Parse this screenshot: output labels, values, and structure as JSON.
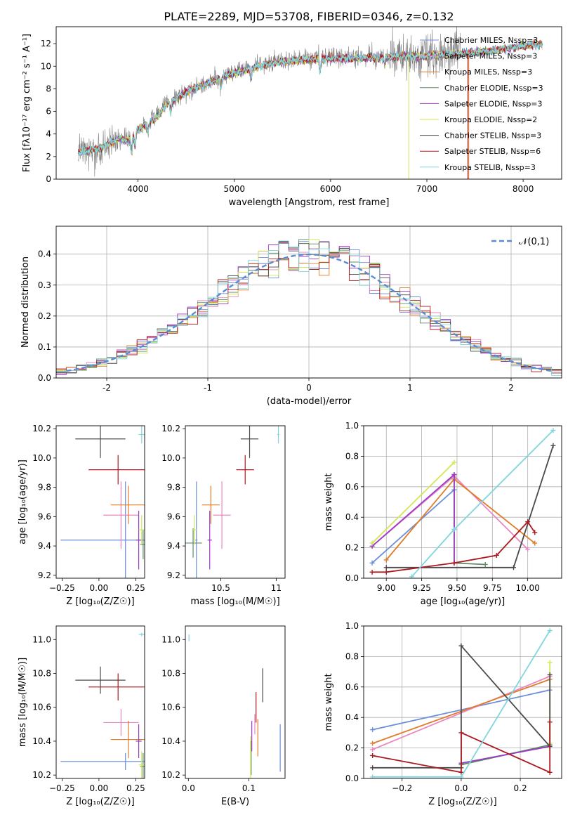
{
  "chart_data": [
    {
      "id": "spectrum",
      "type": "line",
      "title": "PLATE=2289, MJD=53708, FIBERID=0346, z=0.132",
      "xlabel": "wavelength [Angstrom, rest frame]",
      "ylabel": "Flux [fλ10⁻¹⁷ erg cm⁻² s⁻¹ A⁻¹]",
      "xlim": [
        3150,
        8400
      ],
      "ylim": [
        0,
        13.5
      ],
      "xticks": [
        4000,
        5000,
        6000,
        7000,
        8000
      ],
      "yticks": [
        0,
        2,
        4,
        6,
        8,
        10,
        12
      ],
      "legend_position": "top-right",
      "series": [
        {
          "name": "Chabrier MILES, N_SSP=3",
          "color": "#6c8ed9"
        },
        {
          "name": "Salpeter MILES, N_SSP=3",
          "color": "#e987c2"
        },
        {
          "name": "Kroupa MILES, N_SSP=3",
          "color": "#e07b28"
        },
        {
          "name": "Chabrier ELODIE, N_SSP=3",
          "color": "#5e8c68"
        },
        {
          "name": "Salpeter ELODIE, N_SSP=3",
          "color": "#9b3bc3"
        },
        {
          "name": "Kroupa ELODIE, N_SSP=2",
          "color": "#d2e657"
        },
        {
          "name": "Chabrier STELIB, N_SSP=3",
          "color": "#4a4a4a"
        },
        {
          "name": "Salpeter STELIB, N_SSP=6",
          "color": "#ac1a20"
        },
        {
          "name": "Kroupa STELIB, N_SSP=3",
          "color": "#7fd6de"
        }
      ],
      "continuum": {
        "x": [
          3400,
          3600,
          3700,
          3800,
          3900,
          4000,
          4100,
          4200,
          4300,
          4400,
          4500,
          4700,
          5000,
          5300,
          5500,
          5800,
          6000,
          6300,
          6600,
          7000,
          7300,
          7600,
          7800,
          8000,
          8100
        ],
        "y": [
          2.5,
          2.8,
          3.2,
          3.7,
          3.5,
          4.5,
          5.0,
          5.6,
          6.8,
          7.2,
          7.8,
          8.5,
          9.5,
          10.2,
          10.5,
          10.7,
          10.8,
          10.8,
          10.9,
          11.0,
          11.2,
          11.4,
          11.6,
          11.9,
          12.0
        ]
      },
      "data_range": [
        3380,
        7350
      ],
      "model_range": [
        3380,
        8200
      ]
    },
    {
      "id": "residual-hist",
      "type": "histogram",
      "xlabel": "(data-model)/error",
      "ylabel": "Normed distribution",
      "xlim": [
        -2.5,
        2.5
      ],
      "ylim": [
        0,
        0.49
      ],
      "xticks": [
        -2,
        -1,
        0,
        1,
        2
      ],
      "yticks": [
        0.0,
        0.1,
        0.2,
        0.3,
        0.4
      ],
      "grid": true,
      "legend_position": "top-right",
      "reference_curve": {
        "name": "𝒩(0,1)",
        "color": "#5b8bd5",
        "style": "dashed"
      },
      "bin_width": 0.1
    },
    {
      "id": "age-vs-Z",
      "type": "errorbar",
      "xlabel": "Z [log₁₀(Z/Z☉)]",
      "ylabel": "age  [log₁₀(age/yr)]",
      "xlim": [
        -0.29,
        0.31
      ],
      "ylim": [
        9.18,
        10.22
      ],
      "xticks": [
        -0.25,
        0.0,
        0.25
      ],
      "xticklabels": [
        "−0.25",
        "0.00",
        "0.25"
      ],
      "yticks": [
        9.2,
        9.4,
        9.6,
        9.8,
        10.0,
        10.2
      ],
      "points": [
        {
          "color": "#6c8ed9",
          "x": 0.18,
          "xerr": 0.44,
          "y": 9.44,
          "yerr": 0.4
        },
        {
          "color": "#e987c2",
          "x": 0.15,
          "xerr": 0.12,
          "y": 9.61,
          "yerr": 0.23
        },
        {
          "color": "#e07b28",
          "x": 0.2,
          "xerr": 0.12,
          "y": 9.68,
          "yerr": 0.13
        },
        {
          "color": "#5e8c68",
          "x": 0.3,
          "xerr": 0.02,
          "y": 9.41,
          "yerr": 0.1
        },
        {
          "color": "#9b3bc3",
          "x": 0.27,
          "xerr": 0.02,
          "y": 9.44,
          "yerr": 0.2
        },
        {
          "color": "#d2e657",
          "x": 0.29,
          "xerr": 0.02,
          "y": 9.51,
          "yerr": 0.1
        },
        {
          "color": "#4a4a4a",
          "x": 0.01,
          "xerr": 0.17,
          "y": 10.13,
          "yerr": 0.13
        },
        {
          "color": "#ac1a20",
          "x": 0.13,
          "xerr": 0.2,
          "y": 9.92,
          "yerr": 0.1
        },
        {
          "color": "#7fd6de",
          "x": 0.29,
          "xerr": 0.02,
          "y": 10.16,
          "yerr": 0.06
        }
      ]
    },
    {
      "id": "age-vs-mass",
      "type": "errorbar",
      "xlabel": "mass [log₁₀(M/M☉)]",
      "xlim": [
        10.18,
        11.08
      ],
      "ylim": [
        9.18,
        10.22
      ],
      "xticks": [
        10.5,
        11.0
      ],
      "yticks": [
        9.2,
        9.4,
        9.6,
        9.8,
        10.0,
        10.2
      ],
      "points": [
        {
          "color": "#6c8ed9",
          "x": 10.28,
          "xerr": 0.01,
          "y": 9.44,
          "yerr": 0.4
        },
        {
          "color": "#e987c2",
          "x": 10.51,
          "xerr": 0.08,
          "y": 9.61,
          "yerr": 0.23
        },
        {
          "color": "#e07b28",
          "x": 10.41,
          "xerr": 0.08,
          "y": 9.68,
          "yerr": 0.13
        },
        {
          "color": "#5e8c68",
          "x": 10.25,
          "xerr": 0.08,
          "y": 9.42,
          "yerr": 0.1
        },
        {
          "color": "#9b3bc3",
          "x": 10.4,
          "xerr": 0.02,
          "y": 9.44,
          "yerr": 0.2
        },
        {
          "color": "#d2e657",
          "x": 10.26,
          "xerr": 0.02,
          "y": 9.51,
          "yerr": 0.1
        },
        {
          "color": "#4a4a4a",
          "x": 10.76,
          "xerr": 0.08,
          "y": 10.13,
          "yerr": 0.13
        },
        {
          "color": "#ac1a20",
          "x": 10.72,
          "xerr": 0.08,
          "y": 9.92,
          "yerr": 0.1
        },
        {
          "color": "#7fd6de",
          "x": 11.02,
          "xerr": 0.01,
          "y": 10.16,
          "yerr": 0.06
        }
      ]
    },
    {
      "id": "massweight-vs-age",
      "type": "line",
      "xlabel": "age  [log₁₀(age/yr)]",
      "ylabel": "mass weight",
      "xlim": [
        8.84,
        10.24
      ],
      "ylim": [
        0.0,
        1.0
      ],
      "xticks": [
        9.0,
        9.25,
        9.5,
        9.75,
        10.0
      ],
      "xticklabels": [
        "9.00",
        "9.25",
        "9.50",
        "9.75",
        "10.00"
      ],
      "yticks": [
        0.0,
        0.2,
        0.4,
        0.6,
        0.8,
        1.0
      ],
      "grid": true,
      "series": [
        {
          "color": "#6c8ed9",
          "x": [
            8.9,
            9.48,
            9.48
          ],
          "y": [
            0.1,
            0.58,
            0.32
          ]
        },
        {
          "color": "#e987c2",
          "x": [
            8.9,
            9.48,
            10.0
          ],
          "y": [
            0.21,
            0.67,
            0.19
          ]
        },
        {
          "color": "#e07b28",
          "x": [
            9.0,
            9.48,
            10.05
          ],
          "y": [
            0.12,
            0.65,
            0.23
          ]
        },
        {
          "color": "#5e8c68",
          "x": [
            9.48,
            9.48,
            9.7
          ],
          "y": [
            0.68,
            0.1,
            0.09
          ]
        },
        {
          "color": "#9b3bc3",
          "x": [
            8.9,
            9.48,
            9.48
          ],
          "y": [
            0.21,
            0.68,
            0.1
          ]
        },
        {
          "color": "#d2e657",
          "x": [
            8.9,
            9.48
          ],
          "y": [
            0.23,
            0.76
          ]
        },
        {
          "color": "#4a4a4a",
          "x": [
            9.0,
            9.9,
            10.18
          ],
          "y": [
            0.07,
            0.07,
            0.87
          ]
        },
        {
          "color": "#ac1a20",
          "x": [
            8.9,
            9.0,
            9.48,
            9.78,
            10.0,
            10.05
          ],
          "y": [
            0.04,
            0.04,
            0.1,
            0.15,
            0.37,
            0.3
          ]
        },
        {
          "color": "#7fd6de",
          "x": [
            9.18,
            9.48,
            10.18
          ],
          "y": [
            0.01,
            0.32,
            0.97
          ]
        }
      ]
    },
    {
      "id": "mass-vs-Z",
      "type": "errorbar",
      "xlabel": "Z [log₁₀(Z/Z☉)]",
      "ylabel": "mass [log₁₀(M/M☉)]",
      "xlim": [
        -0.29,
        0.31
      ],
      "ylim": [
        10.18,
        11.08
      ],
      "xticks": [
        -0.25,
        0.0,
        0.25
      ],
      "xticklabels": [
        "−0.25",
        "0.00",
        "0.25"
      ],
      "yticks": [
        10.2,
        10.4,
        10.6,
        10.8,
        11.0
      ],
      "points": [
        {
          "color": "#6c8ed9",
          "x": 0.18,
          "xerr": 0.44,
          "y": 10.28,
          "yerr": 0.05
        },
        {
          "color": "#e987c2",
          "x": 0.15,
          "xerr": 0.12,
          "y": 10.51,
          "yerr": 0.08
        },
        {
          "color": "#e07b28",
          "x": 0.2,
          "xerr": 0.12,
          "y": 10.41,
          "yerr": 0.11
        },
        {
          "color": "#5e8c68",
          "x": 0.3,
          "xerr": 0.02,
          "y": 10.25,
          "yerr": 0.08
        },
        {
          "color": "#9b3bc3",
          "x": 0.27,
          "xerr": 0.02,
          "y": 10.4,
          "yerr": 0.1
        },
        {
          "color": "#d2e657",
          "x": 0.29,
          "xerr": 0.02,
          "y": 10.26,
          "yerr": 0.08
        },
        {
          "color": "#4a4a4a",
          "x": 0.01,
          "xerr": 0.17,
          "y": 10.76,
          "yerr": 0.08
        },
        {
          "color": "#ac1a20",
          "x": 0.13,
          "xerr": 0.2,
          "y": 10.72,
          "yerr": 0.08
        },
        {
          "color": "#7fd6de",
          "x": 0.29,
          "xerr": 0.02,
          "y": 11.03,
          "yerr": 0.01
        }
      ]
    },
    {
      "id": "mass-vs-ebv",
      "type": "errorbar",
      "xlabel": "E(B-V)",
      "xlim": [
        -0.005,
        0.16
      ],
      "ylim": [
        10.18,
        11.08
      ],
      "xticks": [
        0.0,
        0.1
      ],
      "xticklabels": [
        "0.0",
        "0.1"
      ],
      "yticks": [
        10.2,
        10.4,
        10.6,
        10.8,
        11.0
      ],
      "points": [
        {
          "color": "#6c8ed9",
          "x": 0.152,
          "xerr": 0.0,
          "y": 10.36,
          "yerr": 0.14
        },
        {
          "color": "#e987c2",
          "x": 0.11,
          "xerr": 0.0,
          "y": 10.5,
          "yerr": 0.06
        },
        {
          "color": "#e07b28",
          "x": 0.115,
          "xerr": 0.0,
          "y": 10.42,
          "yerr": 0.11
        },
        {
          "color": "#5e8c68",
          "x": 0.104,
          "xerr": 0.0,
          "y": 10.3,
          "yerr": 0.1
        },
        {
          "color": "#9b3bc3",
          "x": 0.105,
          "xerr": 0.0,
          "y": 10.43,
          "yerr": 0.09
        },
        {
          "color": "#d2e657",
          "x": 0.103,
          "xerr": 0.0,
          "y": 10.28,
          "yerr": 0.15
        },
        {
          "color": "#4a4a4a",
          "x": 0.123,
          "xerr": 0.0,
          "y": 10.73,
          "yerr": 0.1
        },
        {
          "color": "#ac1a20",
          "x": 0.112,
          "xerr": 0.0,
          "y": 10.6,
          "yerr": 0.09
        },
        {
          "color": "#7fd6de",
          "x": 0.001,
          "xerr": 0.0,
          "y": 11.01,
          "yerr": 0.02
        }
      ]
    },
    {
      "id": "massweight-vs-Z",
      "type": "line",
      "xlabel": "Z [log₁₀(Z/Z☉)]",
      "ylabel": "mass weight",
      "xlim": [
        -0.33,
        0.34
      ],
      "ylim": [
        0.0,
        1.0
      ],
      "xticks": [
        -0.2,
        0.0,
        0.2
      ],
      "xticklabels": [
        "−0.2",
        "0.0",
        "0.2"
      ],
      "yticks": [
        0.0,
        0.2,
        0.4,
        0.6,
        0.8,
        1.0
      ],
      "grid": true,
      "series": [
        {
          "color": "#6c8ed9",
          "x": [
            -0.3,
            0.3
          ],
          "y": [
            0.32,
            0.58
          ]
        },
        {
          "color": "#e987c2",
          "x": [
            -0.3,
            0.3
          ],
          "y": [
            0.19,
            0.67
          ]
        },
        {
          "color": "#e07b28",
          "x": [
            -0.3,
            0.3
          ],
          "y": [
            0.23,
            0.65
          ]
        },
        {
          "color": "#5e8c68",
          "x": [
            0.0,
            0.3
          ],
          "y": [
            0.09,
            0.22
          ]
        },
        {
          "color": "#9b3bc3",
          "x": [
            0.0,
            0.3
          ],
          "y": [
            0.1,
            0.21
          ]
        },
        {
          "color": "#d2e657",
          "x": [
            0.3,
            0.3
          ],
          "y": [
            0.23,
            0.76
          ]
        },
        {
          "color": "#4a4a4a",
          "x": [
            -0.3,
            0.0,
            0.0,
            0.3,
            0.3
          ],
          "y": [
            0.07,
            0.07,
            0.87,
            0.21,
            0.68
          ]
        },
        {
          "color": "#ac1a20",
          "x": [
            -0.3,
            0.0,
            0.0,
            0.3,
            0.3
          ],
          "y": [
            0.15,
            0.04,
            0.3,
            0.04,
            0.37
          ]
        },
        {
          "color": "#7fd6de",
          "x": [
            -0.3,
            0.0,
            0.3
          ],
          "y": [
            0.01,
            0.01,
            0.97
          ]
        }
      ]
    }
  ]
}
